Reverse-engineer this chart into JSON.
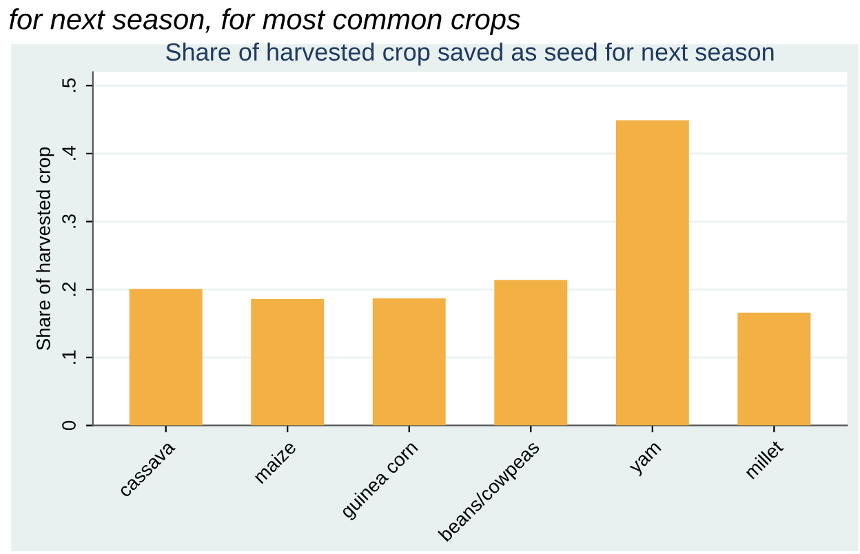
{
  "chart_data": {
    "type": "bar",
    "title": "Share of harvested crop saved as seed for next season",
    "ylabel": "Share of harvested crop",
    "annotations": [
      "for next season, for most common crops"
    ],
    "categories": [
      "cassava",
      "maize",
      "guinea corn",
      "beans/cowpeas",
      "yam",
      "millet"
    ],
    "values": [
      0.201,
      0.186,
      0.187,
      0.214,
      0.449,
      0.166
    ],
    "color": "#f3b044",
    "ylim": [
      0,
      0.52
    ],
    "yticks": [
      0,
      {
        "value": 0.1,
        "label": ".1"
      },
      {
        "value": 0.2,
        "label": ".2"
      },
      {
        "value": 0.3,
        "label": ".3"
      },
      {
        "value": 0.4,
        "label": ".4"
      },
      {
        "value": 0.5,
        "label": ".5"
      }
    ],
    "grid": "y",
    "legend": false
  }
}
